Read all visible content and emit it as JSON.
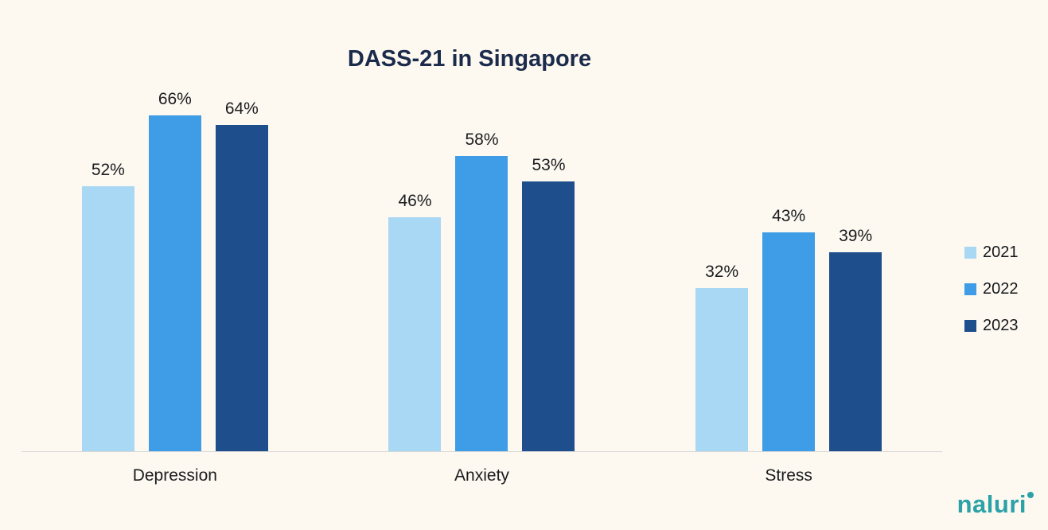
{
  "page": {
    "background": "#fdf9f0"
  },
  "chart_data": {
    "type": "bar",
    "title": "DASS-21 in Singapore",
    "categories": [
      "Depression",
      "Anxiety",
      "Stress"
    ],
    "series": [
      {
        "name": "2021",
        "color": "#a9d8f5",
        "values": [
          52,
          46,
          32
        ]
      },
      {
        "name": "2022",
        "color": "#3f9ce6",
        "values": [
          66,
          58,
          43
        ]
      },
      {
        "name": "2023",
        "color": "#1f4e8c",
        "values": [
          64,
          53,
          39
        ]
      }
    ],
    "value_suffix": "%",
    "xlabel": "",
    "ylabel": "",
    "ylim": [
      0,
      70
    ],
    "grid": false,
    "legend_position": "right",
    "axis_line_color": "#d8d8d8",
    "title_color": "#1b2b4c",
    "label_color": "#1a1c20"
  },
  "branding": {
    "logo_text": "naluri",
    "logo_color": "#2ba1a8"
  }
}
